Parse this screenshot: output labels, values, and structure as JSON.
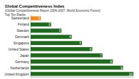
{
  "chart_data": {
    "type": "bar",
    "orientation": "horizontal",
    "title": "Global Competitiveness Index",
    "subtitle": [
      "(Global Competitiveness Report 2006-2007, World Economic Forum)",
      "Top Ten Ranks"
    ],
    "categories": [
      "Switzerland",
      "Finland",
      "Sweden",
      "Denmark",
      "Singapore",
      "United States",
      "Japan",
      "Germany",
      "Netherlands",
      "United Kingdom"
    ],
    "values": [
      1,
      2,
      3,
      4,
      5,
      6,
      7,
      8,
      9,
      10
    ],
    "colors": [
      "#f08a1c",
      "#1e6b1e",
      "#1e6b1e",
      "#1e6b1e",
      "#1e6b1e",
      "#1e6b1e",
      "#1e6b1e",
      "#1e6b1e",
      "#1e6b1e",
      "#1e6b1e"
    ],
    "xlim": [
      0,
      10
    ],
    "grid": false,
    "data_labels": true,
    "tick_labels": "y"
  }
}
